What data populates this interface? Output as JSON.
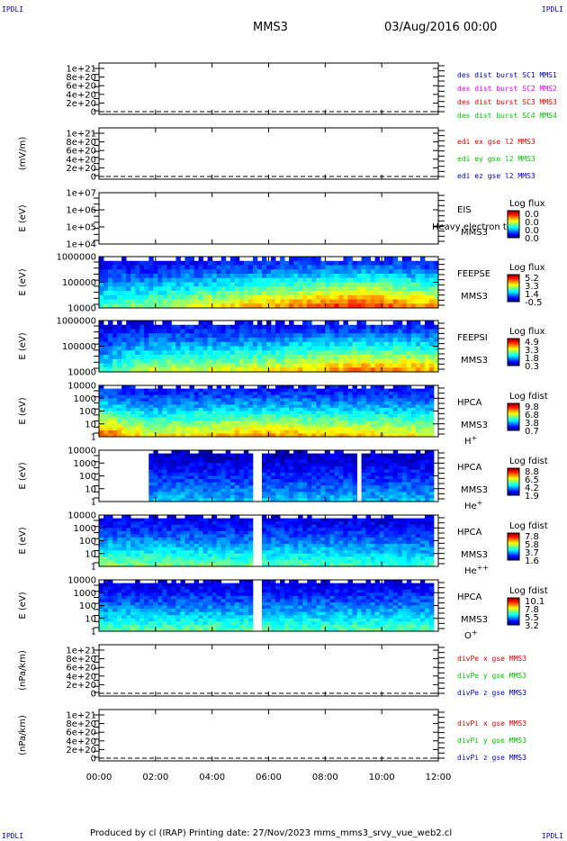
{
  "corner_labels": [
    "IPDLI",
    "IPDLI",
    "IPDLI",
    "IPDLI"
  ],
  "header": {
    "spacecraft": "MMS3",
    "date": "03/Aug/2016 00:00"
  },
  "footer": {
    "text": "Produced by cl (IRAP)   Printing date: 27/Nov/2023   mms_mms3_srvy_vue_web2.cl"
  },
  "colors": {
    "red": "#e00000",
    "magenta": "#e000e0",
    "green": "#00c000",
    "blue": "#0000c0",
    "frame": "#000000"
  },
  "chart_data": {
    "type": "heatmap",
    "x_ticks": [
      "00:00",
      "02:00",
      "04:00",
      "06:00",
      "08:00",
      "10:00",
      "12:00"
    ],
    "panels": [
      {
        "kind": "line",
        "ylabel": "",
        "yticks": [
          "1e+21",
          "8e+20",
          "6e+20",
          "4e+20",
          "2e+20",
          "0"
        ],
        "legend": [
          {
            "text": "des dist burst SC1 MMS1",
            "color": "#0000c0"
          },
          {
            "text": "des dist burst SC2 MMS2",
            "color": "#e000e0"
          },
          {
            "text": "des dist burst SC3 MMS3",
            "color": "#e00000"
          },
          {
            "text": "des dist burst SC4 MMS4",
            "color": "#00c000"
          }
        ]
      },
      {
        "kind": "line",
        "ylabel": "(mV/m)",
        "yticks": [
          "1e+21",
          "8e+20",
          "6e+20",
          "4e+20",
          "2e+20",
          "0"
        ],
        "legend": [
          {
            "text": "edi ex gse l2 MMS3",
            "color": "#e00000"
          },
          {
            "text": "edi ey gse l2 MMS3",
            "color": "#00c000"
          },
          {
            "text": "edi ez gse l2 MMS3",
            "color": "#0000c0"
          }
        ]
      },
      {
        "kind": "spec",
        "ylabel": "E (eV)",
        "yticks": [
          "1e+07",
          "1e+06",
          "1e+05",
          "1e+04"
        ],
        "inst": [
          "EIS",
          "MMS3"
        ],
        "extra": "Heavy electron to",
        "species": "",
        "cb_title": "Log flux",
        "cb": [
          "0.0",
          "0.0",
          "0.0",
          "0.0"
        ],
        "coverage": []
      },
      {
        "kind": "spec",
        "ylabel": "E (eV)",
        "yticks": [
          "1000000",
          "100000",
          "10000"
        ],
        "inst": [
          "FEEPSE",
          "MMS3"
        ],
        "species": "",
        "cb_title": "Log flux",
        "cb": [
          "5.2",
          "3.3",
          "1.4",
          "-0.5"
        ],
        "coverage": [
          [
            0,
            12
          ]
        ],
        "intensity": [
          [
            0,
            0.45
          ],
          [
            1.7,
            0.5
          ],
          [
            5.7,
            0.7
          ],
          [
            9.2,
            0.85
          ],
          [
            12,
            0.7
          ]
        ]
      },
      {
        "kind": "spec",
        "ylabel": "E (eV)",
        "yticks": [
          "1000000",
          "100000",
          "10000"
        ],
        "inst": [
          "FEEPSI",
          "MMS3"
        ],
        "species": "",
        "cb_title": "Log flux",
        "cb": [
          "4.9",
          "3.3",
          "1.8",
          "0.3"
        ],
        "coverage": [
          [
            0,
            12
          ]
        ],
        "intensity": [
          [
            0,
            0.4
          ],
          [
            1.7,
            0.55
          ],
          [
            5.7,
            0.6
          ],
          [
            9.2,
            0.75
          ],
          [
            12,
            0.7
          ]
        ]
      },
      {
        "kind": "spec",
        "ylabel": "E (eV)",
        "yticks": [
          "10000",
          "1000",
          "100",
          "10",
          "1"
        ],
        "inst": [
          "HPCA",
          "MMS3"
        ],
        "species": "H+",
        "cb_title": "Log fdist",
        "cb": [
          "9.8",
          "6.8",
          "3.8",
          "0.7"
        ],
        "coverage": [
          [
            0,
            11.8
          ]
        ],
        "intensity": [
          [
            0,
            0.8
          ],
          [
            1.7,
            0.6
          ],
          [
            5.7,
            0.7
          ],
          [
            12,
            0.6
          ]
        ]
      },
      {
        "kind": "spec",
        "ylabel": "E (eV)",
        "yticks": [
          "10000",
          "1000",
          "100",
          "10",
          "1"
        ],
        "inst": [
          "HPCA",
          "MMS3"
        ],
        "species": "He+",
        "cb_title": "Log fdist",
        "cb": [
          "8.8",
          "6.5",
          "4.2",
          "1.9"
        ],
        "coverage": [
          [
            1.7,
            5.5
          ],
          [
            5.7,
            9.1
          ],
          [
            9.3,
            11.8
          ]
        ],
        "intensity": [
          [
            0,
            0.3
          ],
          [
            12,
            0.3
          ]
        ]
      },
      {
        "kind": "spec",
        "ylabel": "E (eV)",
        "yticks": [
          "10000",
          "1000",
          "100",
          "10",
          "1"
        ],
        "inst": [
          "HPCA",
          "MMS3"
        ],
        "species": "He++",
        "cb_title": "Log fdist",
        "cb": [
          "7.8",
          "5.8",
          "3.7",
          "1.6"
        ],
        "coverage": [
          [
            0,
            1.7
          ],
          [
            1.7,
            5.5
          ],
          [
            5.7,
            11.8
          ]
        ],
        "intensity": [
          [
            0,
            0.5
          ],
          [
            12,
            0.4
          ]
        ]
      },
      {
        "kind": "spec",
        "ylabel": "E (eV)",
        "yticks": [
          "10000",
          "1000",
          "100",
          "10",
          "1"
        ],
        "inst": [
          "HPCA",
          "MMS3"
        ],
        "species": "O+",
        "cb_title": "Log fdist",
        "cb": [
          "10.1",
          "7.8",
          "5.5",
          "3.2"
        ],
        "coverage": [
          [
            0,
            1.7
          ],
          [
            1.7,
            5.5
          ],
          [
            5.7,
            11.8
          ]
        ],
        "intensity": [
          [
            0,
            0.45
          ],
          [
            12,
            0.45
          ]
        ]
      },
      {
        "kind": "line",
        "ylabel": "(nPa/km)",
        "yticks": [
          "1e+21",
          "8e+20",
          "6e+20",
          "4e+20",
          "2e+20",
          "0"
        ],
        "legend": [
          {
            "text": "divPe x gse MMS3",
            "color": "#e00000"
          },
          {
            "text": "divPe y gse MMS3",
            "color": "#00c000"
          },
          {
            "text": "divPe z gse MMS3",
            "color": "#0000c0"
          }
        ]
      },
      {
        "kind": "line",
        "ylabel": "(nPa/km)",
        "yticks": [
          "1e+21",
          "8e+20",
          "6e+20",
          "4e+20",
          "2e+20",
          "0"
        ],
        "legend": [
          {
            "text": "divPi x gse MMS3",
            "color": "#e00000"
          },
          {
            "text": "divPi y gse MMS3",
            "color": "#00c000"
          },
          {
            "text": "divPi z gse MMS3",
            "color": "#0000c0"
          }
        ]
      }
    ]
  }
}
